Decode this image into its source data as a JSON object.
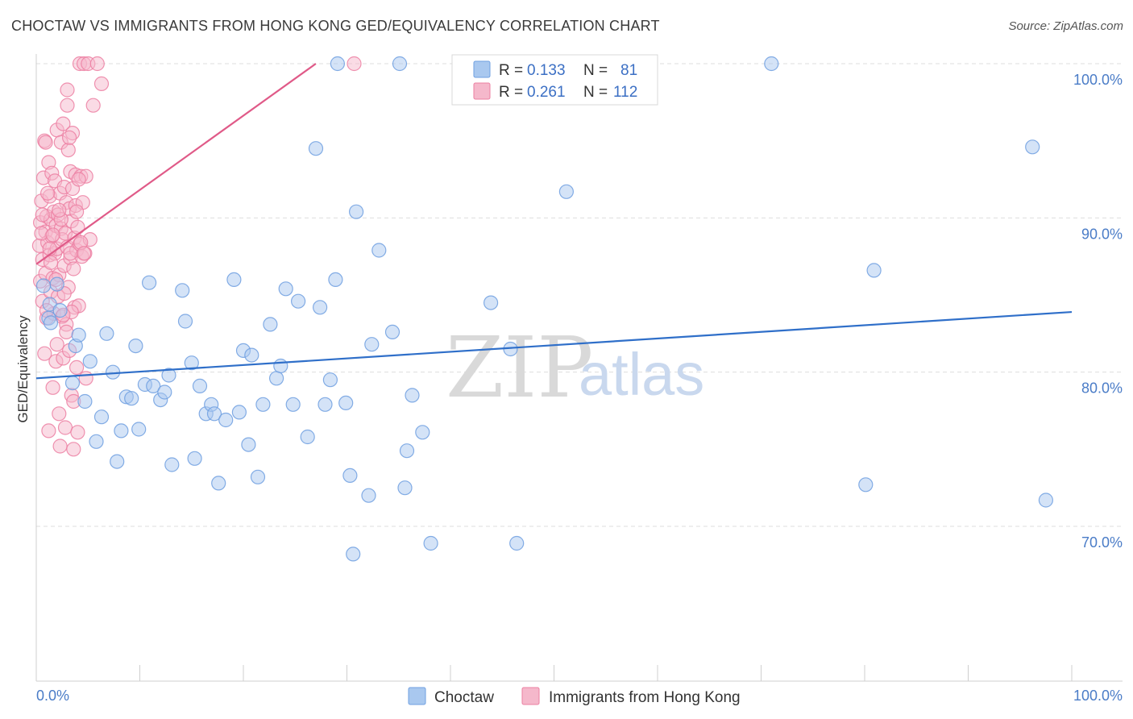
{
  "title": "CHOCTAW VS IMMIGRANTS FROM HONG KONG GED/EQUIVALENCY CORRELATION CHART",
  "source": "Source: ZipAtlas.com",
  "watermark": {
    "zip": "ZIP",
    "atlas": "atlas"
  },
  "colors": {
    "blue_fill": "#a9c8ef",
    "blue_stroke": "#6f9fe0",
    "blue_line": "#2f6fc9",
    "pink_fill": "#f5b8cb",
    "pink_stroke": "#ec7fa2",
    "pink_line": "#e05a88",
    "grid": "#dddddd",
    "axis_text": "#4a7cc7"
  },
  "legend": {
    "rows": [
      {
        "r_label": "R =",
        "r_value": "0.133",
        "n_label": "N =",
        "n_value": "81"
      },
      {
        "r_label": "R =",
        "r_value": "0.261",
        "n_label": "N =",
        "n_value": "112"
      }
    ]
  },
  "chart_data": {
    "type": "scatter",
    "title": "CHOCTAW VS IMMIGRANTS FROM HONG KONG GED/EQUIVALENCY CORRELATION CHART",
    "xlabel": "",
    "ylabel": "GED/Equivalency",
    "xlim": [
      0,
      100
    ],
    "ylim": [
      59.5,
      100.5
    ],
    "x_tick_labels": [
      "0.0%",
      "100.0%"
    ],
    "y_ticks": [
      70,
      80,
      90,
      100
    ],
    "y_tick_labels": [
      "70.0%",
      "80.0%",
      "90.0%",
      "100.0%"
    ],
    "grid": true,
    "legend_position": "top-center",
    "series": [
      {
        "name": "Choctaw",
        "trend": {
          "x": [
            0,
            100
          ],
          "y": [
            79.6,
            83.9
          ]
        },
        "points": [
          [
            1.2,
            83.5
          ],
          [
            1.3,
            84.4
          ],
          [
            1.4,
            83.2
          ],
          [
            2.0,
            85.7
          ],
          [
            2.3,
            84.0
          ],
          [
            3.5,
            79.3
          ],
          [
            3.8,
            81.7
          ],
          [
            4.1,
            82.4
          ],
          [
            4.7,
            78.1
          ],
          [
            5.2,
            80.7
          ],
          [
            5.8,
            75.5
          ],
          [
            6.3,
            77.1
          ],
          [
            6.8,
            82.5
          ],
          [
            7.4,
            80.0
          ],
          [
            7.8,
            74.2
          ],
          [
            8.2,
            76.2
          ],
          [
            8.7,
            78.4
          ],
          [
            9.2,
            78.3
          ],
          [
            9.6,
            81.7
          ],
          [
            9.9,
            76.3
          ],
          [
            10.5,
            79.2
          ],
          [
            10.9,
            85.8
          ],
          [
            11.3,
            79.1
          ],
          [
            12.0,
            78.2
          ],
          [
            12.4,
            78.7
          ],
          [
            12.8,
            79.8
          ],
          [
            13.1,
            74.0
          ],
          [
            14.1,
            85.3
          ],
          [
            14.4,
            83.3
          ],
          [
            15.0,
            80.6
          ],
          [
            15.3,
            74.4
          ],
          [
            15.8,
            79.1
          ],
          [
            16.4,
            77.3
          ],
          [
            16.9,
            77.9
          ],
          [
            17.2,
            77.3
          ],
          [
            17.6,
            72.8
          ],
          [
            18.3,
            76.9
          ],
          [
            19.1,
            86.0
          ],
          [
            19.6,
            77.4
          ],
          [
            20.0,
            81.4
          ],
          [
            20.5,
            75.3
          ],
          [
            20.8,
            81.1
          ],
          [
            21.4,
            73.2
          ],
          [
            21.9,
            77.9
          ],
          [
            22.6,
            83.1
          ],
          [
            23.2,
            79.6
          ],
          [
            23.6,
            80.4
          ],
          [
            24.1,
            85.4
          ],
          [
            24.8,
            77.9
          ],
          [
            25.3,
            84.6
          ],
          [
            26.2,
            75.8
          ],
          [
            27.0,
            94.5
          ],
          [
            27.4,
            84.2
          ],
          [
            27.9,
            77.9
          ],
          [
            28.4,
            79.5
          ],
          [
            28.9,
            86.0
          ],
          [
            29.1,
            100
          ],
          [
            29.9,
            78.0
          ],
          [
            30.3,
            73.3
          ],
          [
            30.6,
            68.2
          ],
          [
            30.9,
            90.4
          ],
          [
            32.1,
            72.0
          ],
          [
            32.4,
            81.8
          ],
          [
            33.1,
            87.9
          ],
          [
            34.4,
            82.6
          ],
          [
            35.1,
            100
          ],
          [
            35.6,
            72.5
          ],
          [
            35.8,
            74.9
          ],
          [
            36.3,
            78.5
          ],
          [
            37.3,
            76.1
          ],
          [
            38.1,
            68.9
          ],
          [
            43.9,
            84.5
          ],
          [
            45.8,
            81.5
          ],
          [
            46.4,
            68.9
          ],
          [
            51.2,
            91.7
          ],
          [
            71.0,
            100
          ],
          [
            80.1,
            72.7
          ],
          [
            80.9,
            86.6
          ],
          [
            96.2,
            94.6
          ],
          [
            97.5,
            71.7
          ],
          [
            0.7,
            85.6
          ]
        ]
      },
      {
        "name": "Immigrants from Hong Kong",
        "trend": {
          "x": [
            0,
            27
          ],
          "y": [
            87.0,
            100.0
          ]
        },
        "points": [
          [
            0.3,
            88.2
          ],
          [
            0.4,
            89.7
          ],
          [
            0.4,
            85.9
          ],
          [
            0.5,
            91.1
          ],
          [
            0.6,
            84.6
          ],
          [
            0.6,
            87.3
          ],
          [
            0.7,
            92.6
          ],
          [
            0.8,
            81.2
          ],
          [
            0.8,
            95.0
          ],
          [
            0.9,
            89.1
          ],
          [
            0.9,
            86.4
          ],
          [
            1.0,
            90.1
          ],
          [
            1.0,
            83.5
          ],
          [
            1.1,
            88.4
          ],
          [
            1.2,
            93.6
          ],
          [
            1.2,
            76.2
          ],
          [
            1.3,
            91.4
          ],
          [
            1.3,
            87.6
          ],
          [
            1.4,
            89.9
          ],
          [
            1.4,
            85.2
          ],
          [
            1.5,
            92.9
          ],
          [
            1.5,
            88.8
          ],
          [
            1.6,
            79.0
          ],
          [
            1.6,
            86.1
          ],
          [
            1.7,
            90.4
          ],
          [
            1.7,
            83.8
          ],
          [
            1.8,
            87.7
          ],
          [
            1.8,
            92.4
          ],
          [
            1.9,
            89.5
          ],
          [
            1.9,
            80.7
          ],
          [
            2.0,
            88.0
          ],
          [
            2.0,
            95.7
          ],
          [
            2.1,
            84.9
          ],
          [
            2.1,
            90.2
          ],
          [
            2.2,
            77.3
          ],
          [
            2.2,
            86.3
          ],
          [
            2.3,
            91.6
          ],
          [
            2.3,
            75.2
          ],
          [
            2.4,
            89.3
          ],
          [
            2.4,
            94.9
          ],
          [
            2.5,
            83.6
          ],
          [
            2.5,
            88.6
          ],
          [
            2.6,
            96.1
          ],
          [
            2.6,
            80.9
          ],
          [
            2.7,
            92.0
          ],
          [
            2.7,
            86.9
          ],
          [
            2.8,
            89.0
          ],
          [
            2.8,
            76.4
          ],
          [
            2.9,
            83.1
          ],
          [
            2.9,
            91.0
          ],
          [
            3.0,
            97.3
          ],
          [
            3.0,
            88.1
          ],
          [
            3.1,
            94.4
          ],
          [
            3.1,
            85.5
          ],
          [
            3.2,
            90.6
          ],
          [
            3.2,
            81.4
          ],
          [
            3.3,
            87.4
          ],
          [
            3.3,
            93.0
          ],
          [
            3.4,
            89.8
          ],
          [
            3.4,
            78.5
          ],
          [
            3.5,
            91.9
          ],
          [
            3.5,
            95.5
          ],
          [
            3.6,
            86.7
          ],
          [
            3.6,
            75.0
          ],
          [
            3.7,
            88.7
          ],
          [
            3.7,
            84.2
          ],
          [
            3.8,
            90.8
          ],
          [
            3.8,
            92.8
          ],
          [
            3.9,
            87.9
          ],
          [
            3.9,
            80.3
          ],
          [
            4.0,
            89.4
          ],
          [
            4.0,
            76.1
          ],
          [
            4.1,
            84.3
          ],
          [
            4.2,
            88.3
          ],
          [
            4.2,
            100
          ],
          [
            4.3,
            92.7
          ],
          [
            4.4,
            87.5
          ],
          [
            4.5,
            91.0
          ],
          [
            4.6,
            100
          ],
          [
            4.7,
            87.7
          ],
          [
            4.8,
            92.7
          ],
          [
            5.0,
            100
          ],
          [
            5.2,
            88.6
          ],
          [
            5.5,
            97.3
          ],
          [
            5.9,
            100
          ],
          [
            6.3,
            98.7
          ],
          [
            0.5,
            89.0
          ],
          [
            0.6,
            90.2
          ],
          [
            0.9,
            94.9
          ],
          [
            1.1,
            91.6
          ],
          [
            1.4,
            87.1
          ],
          [
            1.6,
            88.9
          ],
          [
            2.0,
            81.8
          ],
          [
            2.4,
            89.9
          ],
          [
            2.7,
            85.1
          ],
          [
            2.9,
            82.6
          ],
          [
            3.2,
            95.2
          ],
          [
            3.4,
            83.9
          ],
          [
            3.6,
            78.1
          ],
          [
            3.9,
            90.4
          ],
          [
            4.1,
            92.5
          ],
          [
            4.3,
            88.4
          ],
          [
            4.6,
            87.7
          ],
          [
            4.8,
            79.6
          ],
          [
            1.0,
            84.0
          ],
          [
            1.3,
            88.0
          ],
          [
            1.9,
            86.0
          ],
          [
            2.2,
            90.5
          ],
          [
            2.6,
            83.7
          ],
          [
            3.0,
            98.3
          ],
          [
            3.3,
            87.7
          ],
          [
            30.7,
            100
          ]
        ]
      }
    ]
  }
}
